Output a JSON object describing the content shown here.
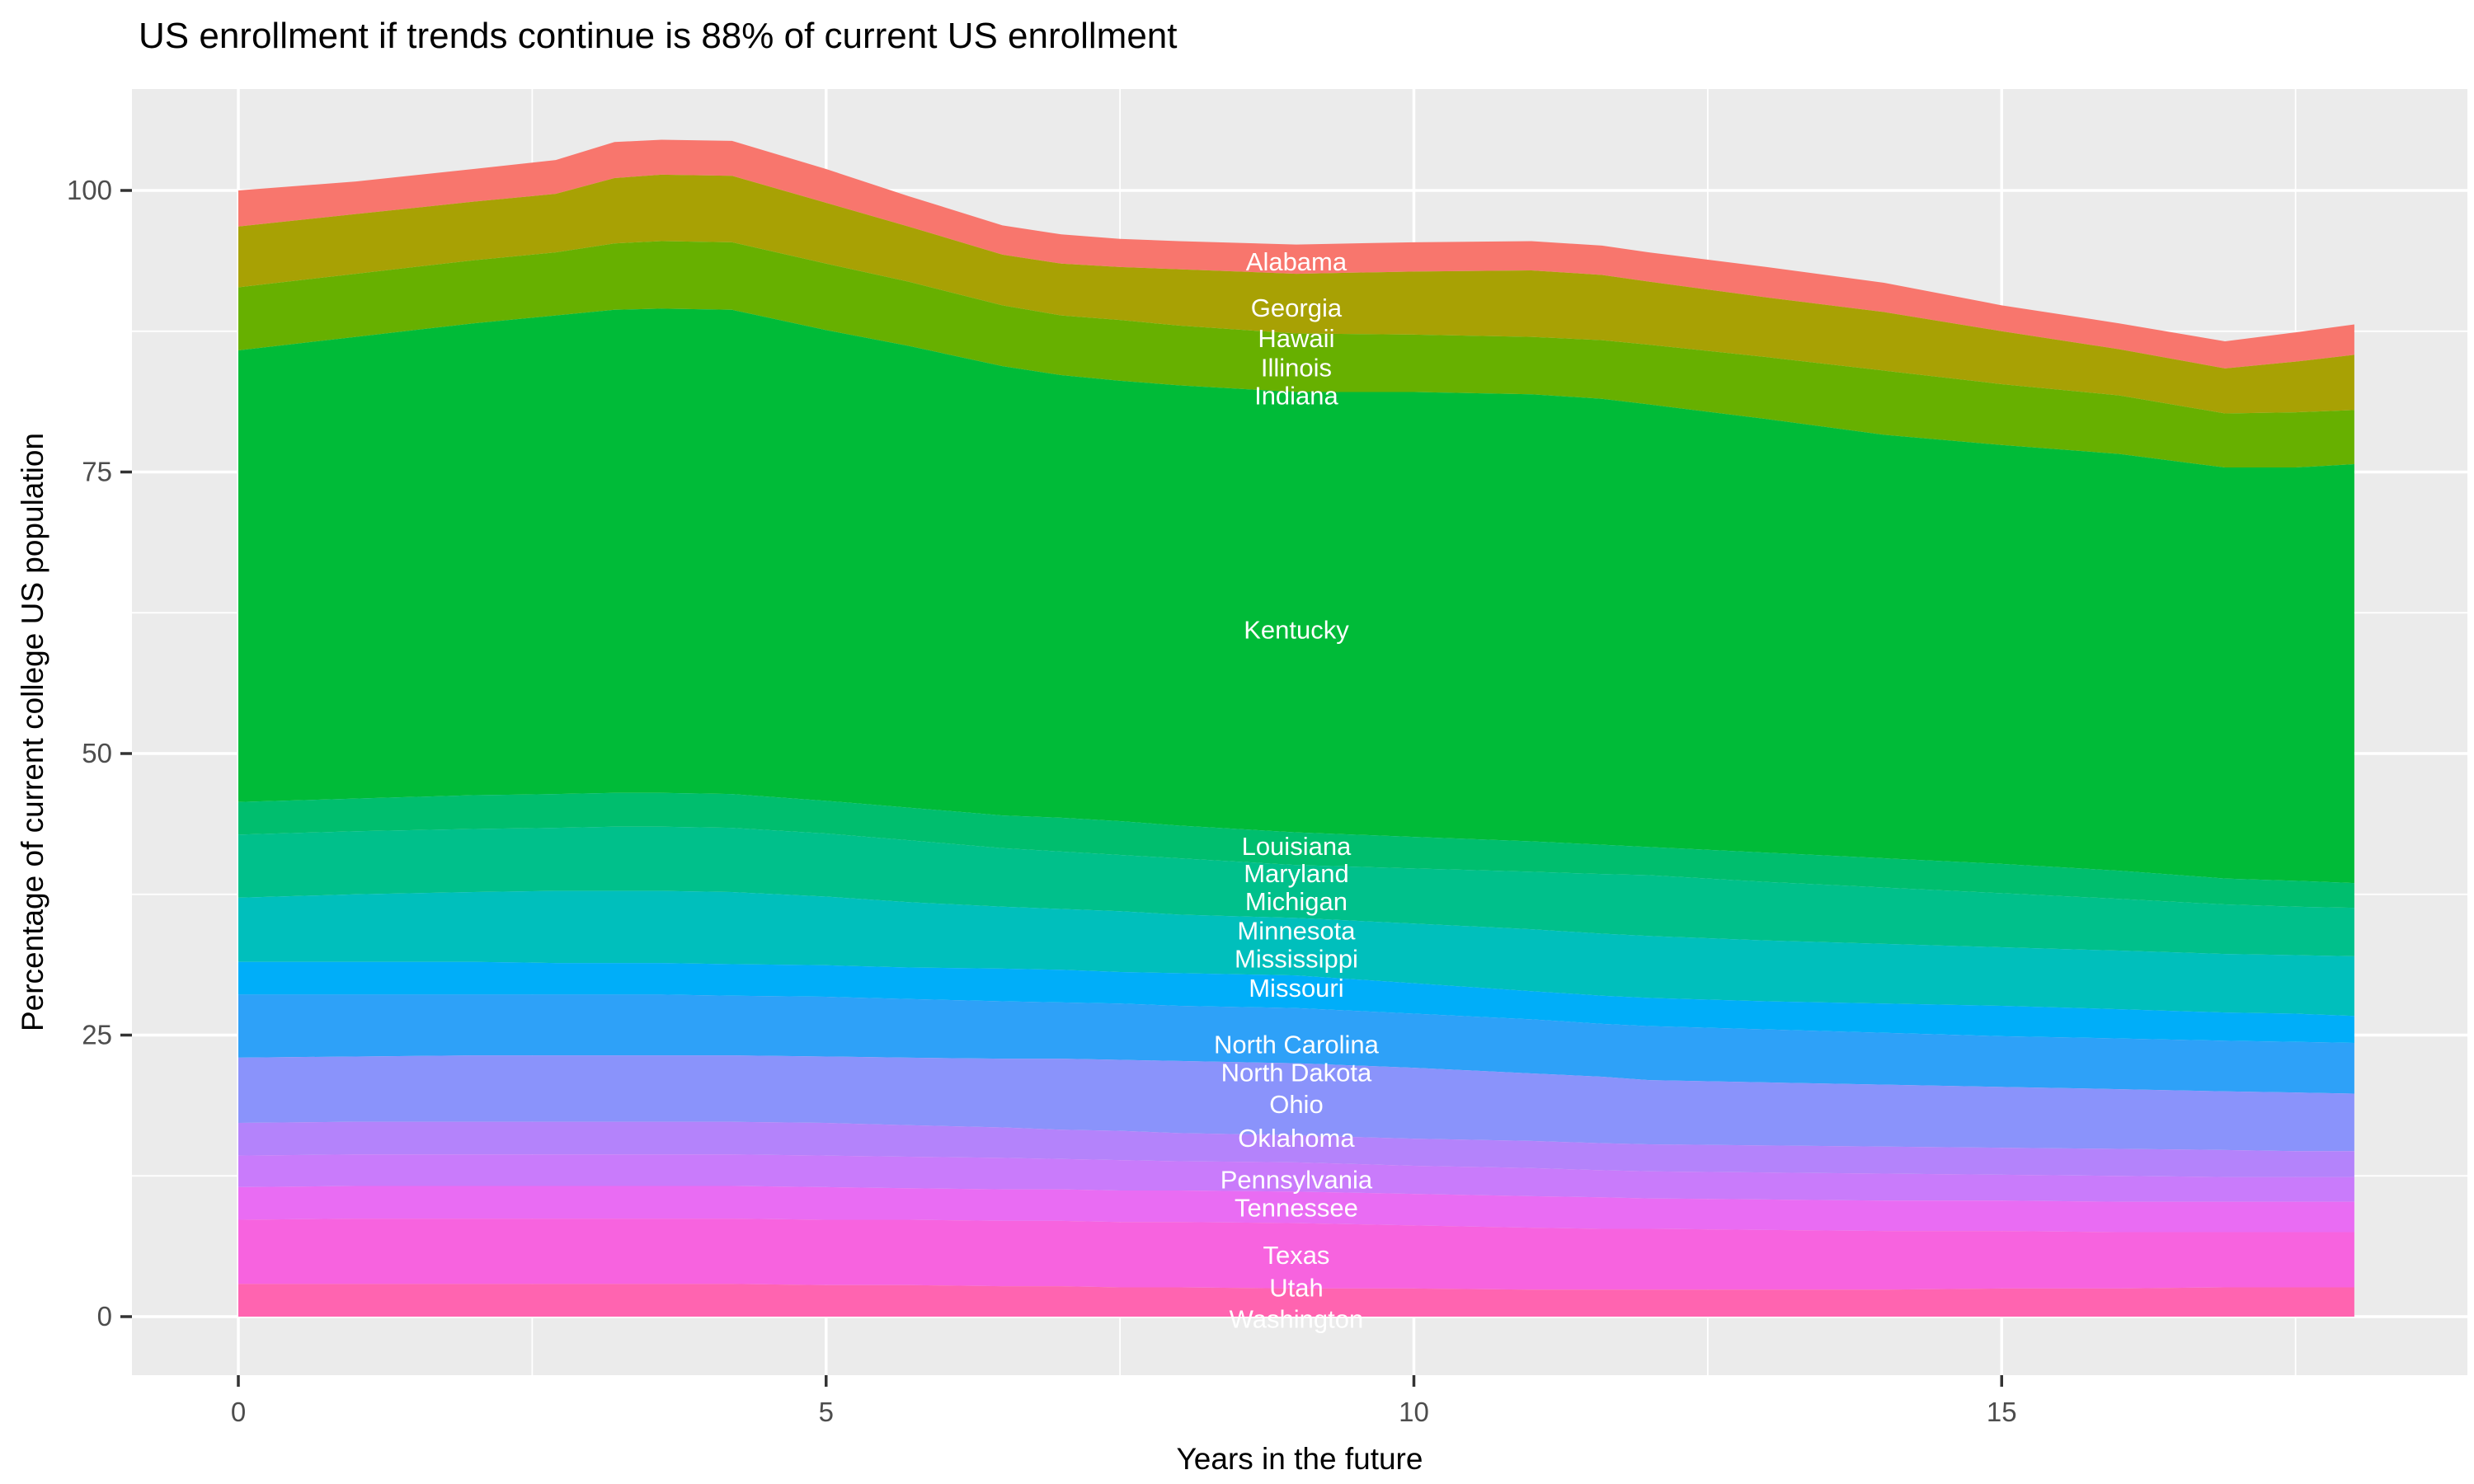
{
  "title": "US enrollment if trends continue is 88% of current US enrollment",
  "x_axis": {
    "label": "Years in the future",
    "ticks": [
      0,
      5,
      10,
      15
    ],
    "minor_ticks": [
      2.5,
      7.5,
      12.5,
      17.5
    ],
    "range": [
      -0.9,
      18.96
    ]
  },
  "y_axis": {
    "label": "Percentage of current college US population",
    "ticks": [
      0,
      25,
      50,
      75,
      100
    ],
    "minor_ticks": [
      12.5,
      37.5,
      62.5,
      87.5
    ],
    "range": [
      -5.2,
      109.3
    ]
  },
  "colors": {
    "background": "#FFFFFF",
    "panel": "#EBEBEB",
    "gridline": "#FFFFFF",
    "tick_mark": "#333333",
    "tick_label": "#4D4D4D",
    "axis_title": "#000000",
    "title": "#000000",
    "band_label_text": "#FFFFFF"
  },
  "chart_data": {
    "type": "area",
    "stacked": true,
    "baseline": 0,
    "title": "US enrollment if trends continue is 88% of current US enrollment",
    "xlabel": "Years in the future",
    "ylabel": "Percentage of current college US population",
    "xlim": [
      -0.9,
      18.96
    ],
    "ylim": [
      -5.2,
      109.3
    ],
    "grid": "white-on-gray, majors x:0,5,10,15 y:0,25,50,75,100, minors x:2.5,7.5,12.5,17.5 y:12.5,37.5,62.5,87.5",
    "legend_position": "none (direct white labels on bands)",
    "x": [
      0,
      1,
      2,
      2.7,
      3.2,
      3.6,
      4.2,
      5,
      5.7,
      6.5,
      7,
      7.5,
      8,
      9,
      10,
      11,
      11.6,
      12,
      13,
      14,
      15,
      16,
      16.9,
      17.5,
      18
    ],
    "total_start": 100,
    "total_end": 88.1,
    "bands": [
      {
        "states": [
          "Alabama"
        ],
        "color": "#F8766D",
        "top": [
          100.0,
          100.8,
          101.9,
          102.7,
          104.3,
          104.5,
          104.4,
          101.9,
          99.5,
          96.9,
          96.1,
          95.7,
          95.5,
          95.2,
          95.4,
          95.5,
          95.1,
          94.5,
          93.2,
          91.8,
          89.8,
          88.2,
          86.6,
          87.4,
          88.1
        ]
      },
      {
        "states": [
          "Georgia"
        ],
        "color": "#A8A104",
        "top": [
          96.8,
          97.9,
          99.0,
          99.7,
          101.1,
          101.4,
          101.3,
          98.9,
          96.8,
          94.3,
          93.5,
          93.2,
          93.0,
          92.6,
          92.8,
          92.9,
          92.5,
          91.9,
          90.5,
          89.2,
          87.5,
          85.9,
          84.2,
          84.8,
          85.4
        ]
      },
      {
        "states": [
          "Hawaii",
          "Illinois"
        ],
        "color": "#67B000",
        "top": [
          91.4,
          92.6,
          93.8,
          94.5,
          95.3,
          95.5,
          95.4,
          93.5,
          91.9,
          89.8,
          88.9,
          88.5,
          88.0,
          87.3,
          87.2,
          87.0,
          86.7,
          86.3,
          85.2,
          84.0,
          82.8,
          81.8,
          80.2,
          80.3,
          80.5
        ]
      },
      {
        "states": [
          "Indiana",
          "Kentucky"
        ],
        "color": "#00BB38",
        "top": [
          85.8,
          87.0,
          88.2,
          88.9,
          89.4,
          89.5,
          89.4,
          87.6,
          86.2,
          84.4,
          83.6,
          83.1,
          82.7,
          82.1,
          82.1,
          81.9,
          81.5,
          81.0,
          79.7,
          78.3,
          77.4,
          76.6,
          75.4,
          75.4,
          75.7
        ]
      },
      {
        "states": [
          "Louisiana"
        ],
        "color": "#00BE6E",
        "top": [
          45.7,
          46.0,
          46.3,
          46.4,
          46.5,
          46.5,
          46.4,
          45.8,
          45.2,
          44.5,
          44.3,
          44.0,
          43.6,
          43.0,
          42.6,
          42.2,
          41.9,
          41.7,
          41.2,
          40.7,
          40.2,
          39.6,
          38.9,
          38.7,
          38.5
        ]
      },
      {
        "states": [
          "Maryland",
          "Michigan"
        ],
        "color": "#00C08B",
        "top": [
          42.8,
          43.1,
          43.3,
          43.4,
          43.5,
          43.5,
          43.4,
          42.9,
          42.3,
          41.6,
          41.3,
          41.0,
          40.7,
          40.1,
          39.8,
          39.5,
          39.3,
          39.2,
          38.6,
          38.1,
          37.6,
          37.1,
          36.6,
          36.4,
          36.3
        ]
      },
      {
        "states": [
          "Minnesota",
          "Mississippi"
        ],
        "color": "#00BFBC",
        "top": [
          37.2,
          37.5,
          37.7,
          37.8,
          37.8,
          37.8,
          37.7,
          37.3,
          36.8,
          36.4,
          36.2,
          36.0,
          35.7,
          35.4,
          34.9,
          34.4,
          34.0,
          33.8,
          33.4,
          33.1,
          32.8,
          32.5,
          32.2,
          32.1,
          32.0
        ]
      },
      {
        "states": [
          "Missouri"
        ],
        "color": "#00AEF9",
        "top": [
          31.5,
          31.5,
          31.5,
          31.4,
          31.4,
          31.4,
          31.3,
          31.2,
          31.0,
          30.9,
          30.8,
          30.6,
          30.5,
          30.3,
          29.6,
          28.9,
          28.5,
          28.3,
          28.0,
          27.8,
          27.6,
          27.3,
          27.0,
          26.9,
          26.7
        ]
      },
      {
        "states": [
          "North Carolina"
        ],
        "color": "#2EA1F8",
        "top": [
          28.6,
          28.6,
          28.6,
          28.6,
          28.6,
          28.6,
          28.5,
          28.4,
          28.2,
          28.0,
          27.9,
          27.8,
          27.6,
          27.4,
          26.9,
          26.4,
          26.0,
          25.8,
          25.5,
          25.2,
          24.9,
          24.7,
          24.5,
          24.4,
          24.3
        ]
      },
      {
        "states": [
          "North Dakota",
          "Ohio"
        ],
        "color": "#8A93FB",
        "top": [
          23.0,
          23.1,
          23.2,
          23.2,
          23.2,
          23.2,
          23.2,
          23.1,
          23.0,
          22.9,
          22.9,
          22.8,
          22.7,
          22.5,
          22.1,
          21.6,
          21.3,
          21.0,
          20.8,
          20.6,
          20.4,
          20.2,
          20.0,
          19.9,
          19.8
        ]
      },
      {
        "states": [
          "Oklahoma"
        ],
        "color": "#B483FB",
        "top": [
          17.2,
          17.3,
          17.3,
          17.3,
          17.3,
          17.3,
          17.3,
          17.2,
          17.0,
          16.8,
          16.6,
          16.5,
          16.3,
          16.1,
          15.8,
          15.6,
          15.4,
          15.3,
          15.2,
          15.1,
          15.0,
          14.9,
          14.8,
          14.7,
          14.7
        ]
      },
      {
        "states": [
          "Pennsylvania"
        ],
        "color": "#C97BFB",
        "top": [
          14.3,
          14.4,
          14.4,
          14.4,
          14.4,
          14.4,
          14.4,
          14.3,
          14.2,
          14.1,
          14.0,
          13.9,
          13.8,
          13.7,
          13.4,
          13.2,
          13.0,
          12.9,
          12.8,
          12.7,
          12.6,
          12.5,
          12.4,
          12.4,
          12.4
        ]
      },
      {
        "states": [
          "Tennessee"
        ],
        "color": "#E96CF3",
        "top": [
          11.5,
          11.6,
          11.6,
          11.6,
          11.6,
          11.6,
          11.6,
          11.5,
          11.4,
          11.3,
          11.3,
          11.2,
          11.2,
          11.1,
          10.9,
          10.7,
          10.6,
          10.5,
          10.4,
          10.3,
          10.3,
          10.2,
          10.2,
          10.2,
          10.2
        ]
      },
      {
        "states": [
          "Texas",
          "Utah"
        ],
        "color": "#F763DF",
        "top": [
          8.6,
          8.7,
          8.7,
          8.7,
          8.7,
          8.7,
          8.7,
          8.6,
          8.6,
          8.5,
          8.5,
          8.4,
          8.4,
          8.3,
          8.1,
          7.9,
          7.8,
          7.8,
          7.7,
          7.6,
          7.6,
          7.5,
          7.5,
          7.5,
          7.5
        ]
      },
      {
        "states": [
          "Washington"
        ],
        "color": "#FF64B0",
        "top": [
          2.9,
          2.9,
          2.9,
          2.9,
          2.9,
          2.9,
          2.9,
          2.8,
          2.8,
          2.7,
          2.7,
          2.6,
          2.6,
          2.5,
          2.5,
          2.4,
          2.4,
          2.4,
          2.4,
          2.4,
          2.5,
          2.5,
          2.6,
          2.6,
          2.6
        ]
      }
    ],
    "labels": [
      {
        "text": "Alabama",
        "x": 9,
        "y": 93.7
      },
      {
        "text": "Georgia",
        "x": 9,
        "y": 89.6
      },
      {
        "text": "Hawaii",
        "x": 9,
        "y": 86.9
      },
      {
        "text": "Illinois",
        "x": 9,
        "y": 84.3
      },
      {
        "text": "Indiana",
        "x": 9,
        "y": 81.8
      },
      {
        "text": "Kentucky",
        "x": 9,
        "y": 61.0
      },
      {
        "text": "Louisiana",
        "x": 9,
        "y": 41.8
      },
      {
        "text": "Maryland",
        "x": 9,
        "y": 39.4
      },
      {
        "text": "Michigan",
        "x": 9,
        "y": 36.9
      },
      {
        "text": "Minnesota",
        "x": 9,
        "y": 34.3
      },
      {
        "text": "Mississippi",
        "x": 9,
        "y": 31.8
      },
      {
        "text": "Missouri",
        "x": 9,
        "y": 29.2
      },
      {
        "text": "North Carolina",
        "x": 9,
        "y": 24.2
      },
      {
        "text": "North Dakota",
        "x": 9,
        "y": 21.7
      },
      {
        "text": "Ohio",
        "x": 9,
        "y": 18.9
      },
      {
        "text": "Oklahoma",
        "x": 9,
        "y": 15.9
      },
      {
        "text": "Pennsylvania",
        "x": 9,
        "y": 12.2
      },
      {
        "text": "Tennessee",
        "x": 9,
        "y": 9.7
      },
      {
        "text": "Texas",
        "x": 9,
        "y": 5.5
      },
      {
        "text": "Utah",
        "x": 9,
        "y": 2.6
      },
      {
        "text": "Washington",
        "x": 9,
        "y": -0.2
      }
    ]
  }
}
